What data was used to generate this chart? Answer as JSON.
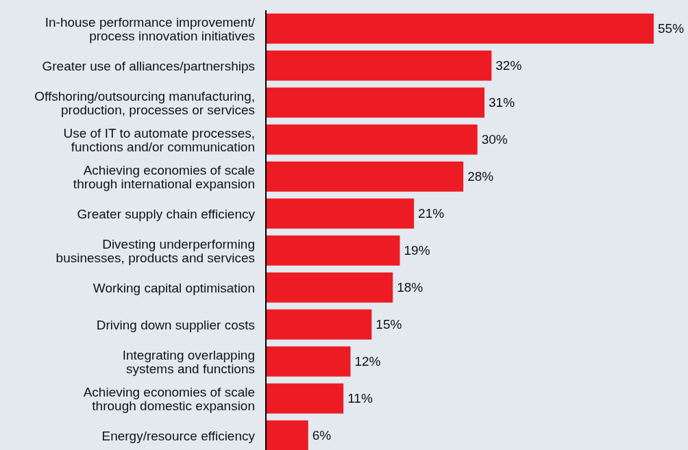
{
  "chart_data": {
    "type": "bar",
    "orientation": "horizontal",
    "categories": [
      "In-house performance improvement/ process innovation initiatives",
      "Greater use of alliances/partnerships",
      "Offshoring/outsourcing manufacturing, production, processes or services",
      "Use of IT to automate processes, functions and/or communication",
      "Achieving economies of scale through international expansion",
      "Greater supply chain efficiency",
      "Divesting underperforming businesses, products and services",
      "Working capital optimisation",
      "Driving down supplier costs",
      "Integrating overlapping systems and functions",
      "Achieving economies of scale through domestic expansion",
      "Energy/resource efficiency"
    ],
    "values": [
      55,
      32,
      31,
      30,
      28,
      21,
      19,
      18,
      15,
      12,
      11,
      6
    ],
    "value_labels": [
      "55%",
      "32%",
      "31%",
      "30%",
      "28%",
      "21%",
      "19%",
      "18%",
      "15%",
      "12%",
      "11%",
      "6%"
    ],
    "color": "#ed1c24"
  }
}
